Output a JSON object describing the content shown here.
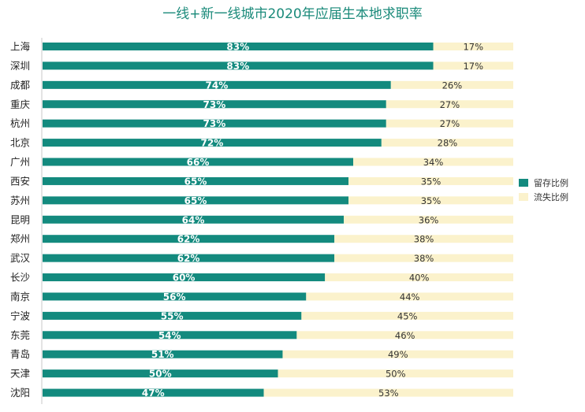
{
  "chart_data": {
    "type": "bar",
    "orientation": "horizontal",
    "stacked": true,
    "title": "一线+新一线城市2020年应届生本地求职率",
    "categories": [
      "上海",
      "深圳",
      "成都",
      "重庆",
      "杭州",
      "北京",
      "广州",
      "西安",
      "苏州",
      "昆明",
      "郑州",
      "武汉",
      "长沙",
      "南京",
      "宁波",
      "东莞",
      "青岛",
      "天津",
      "沈阳"
    ],
    "series": [
      {
        "name": "留存比例",
        "color": "#138a7e",
        "values": [
          83,
          83,
          74,
          73,
          73,
          72,
          66,
          65,
          65,
          64,
          62,
          62,
          60,
          56,
          55,
          54,
          51,
          50,
          47
        ],
        "labels": [
          "83%",
          "83%",
          "74%",
          "73%",
          "73%",
          "72%",
          "66%",
          "65%",
          "65%",
          "64%",
          "62%",
          "62%",
          "60%",
          "56%",
          "55%",
          "54%",
          "51%",
          "50%",
          "47%"
        ]
      },
      {
        "name": "流失比例",
        "color": "#fbf2cc",
        "values": [
          17,
          17,
          26,
          27,
          27,
          28,
          34,
          35,
          35,
          36,
          38,
          38,
          40,
          44,
          45,
          46,
          49,
          50,
          53
        ],
        "labels": [
          "17%",
          "17%",
          "26%",
          "27%",
          "27%",
          "28%",
          "34%",
          "35%",
          "35%",
          "36%",
          "38%",
          "38%",
          "40%",
          "44%",
          "45%",
          "46%",
          "49%",
          "50%",
          "53%"
        ]
      }
    ],
    "xlim": [
      0,
      100
    ],
    "grid": false,
    "legend_position": "right"
  }
}
